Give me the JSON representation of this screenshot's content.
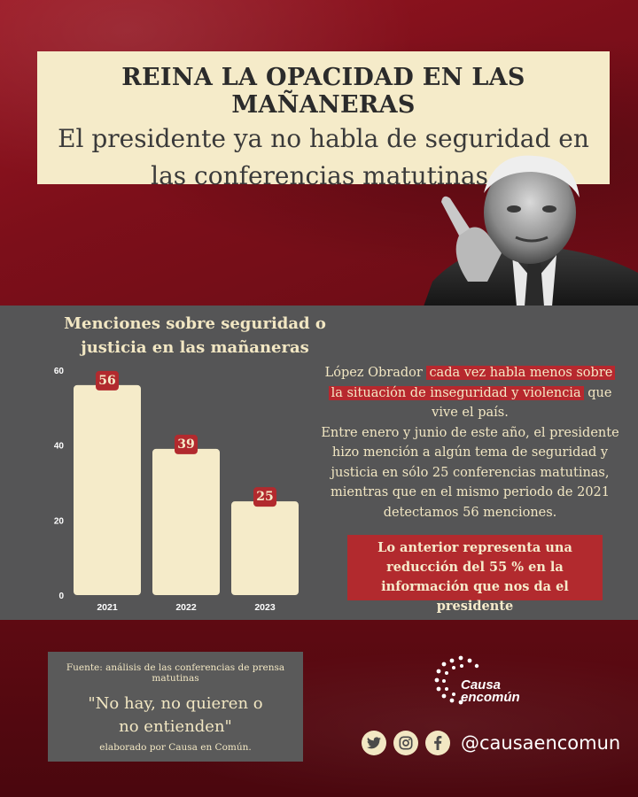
{
  "header": {
    "title": "REINA LA OPACIDAD EN LAS MAÑANERAS",
    "subtitle": "El presidente ya no habla de seguridad en las conferencias matutinas."
  },
  "chart_data": {
    "type": "bar",
    "title": "Menciones sobre seguridad o justicia en las mañaneras",
    "categories": [
      "2021",
      "2022",
      "2023"
    ],
    "values": [
      56,
      39,
      25
    ],
    "data_labels": [
      "56",
      "39",
      "25"
    ],
    "ylim": [
      0,
      60
    ],
    "yticks": [
      "0",
      "20",
      "40",
      "60"
    ],
    "bar_color": "#f5ebc9",
    "label_color": "#b22a2e",
    "grid": false
  },
  "body": {
    "p1_pre": "López Obrador ",
    "p1_hl1": "cada vez habla menos sobre",
    "p1_hl2": "la situación de inseguridad y violencia",
    "p1_post": " que vive el país.",
    "p2": "Entre enero y junio de este año, el presidente hizo mención a algún tema de seguridad y justicia en sólo 25 conferencias matutinas, mientras que en el mismo periodo de 2021 detectamos 56 menciones.",
    "highlight": "Lo anterior representa una reducción del 55 % en la información que nos da el presidente"
  },
  "source": {
    "line": "Fuente: análisis de las conferencias de prensa matutinas",
    "quote_l1": "\"No hay, no quieren o",
    "quote_l2": "no entienden\"",
    "by": "elaborado por Causa en Común."
  },
  "brand": {
    "logo_l1": "Causa",
    "logo_l2": "encomún",
    "handle": "@causaencomun",
    "icons": [
      "twitter-icon",
      "instagram-icon",
      "facebook-icon"
    ]
  },
  "colors": {
    "red": "#b22a2e",
    "cream": "#f5ebc9",
    "gray": "#555556"
  }
}
